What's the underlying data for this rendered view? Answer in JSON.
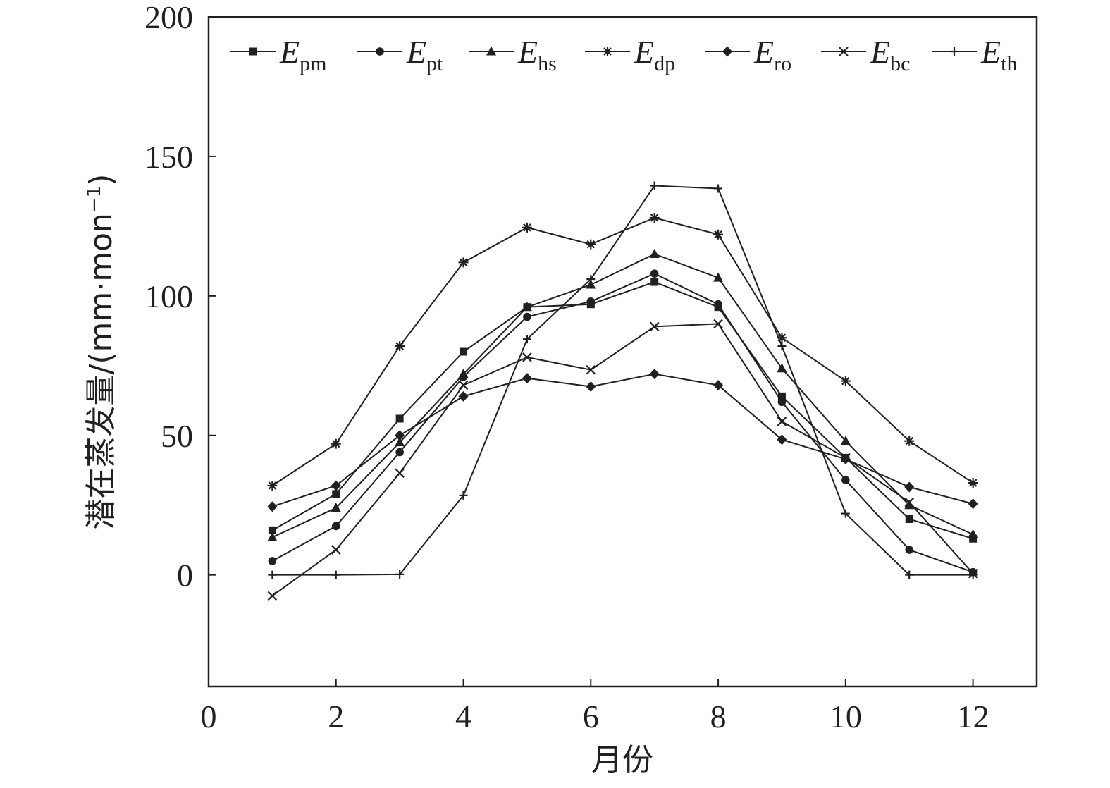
{
  "chart_data": {
    "type": "line",
    "xlabel": "月份",
    "ylabel": "潜在蒸发量/(mm·mon",
    "ylabel_sup": "−1",
    "ylabel_close": ")",
    "xlim": [
      0,
      13
    ],
    "ylim": [
      -40,
      200
    ],
    "xticks": [
      0,
      2,
      4,
      6,
      8,
      10,
      12
    ],
    "yticks": [
      0,
      50,
      100,
      150,
      200
    ],
    "grid": false,
    "legend_position": "top",
    "line_color": "#231f20",
    "x": [
      1,
      2,
      3,
      4,
      5,
      6,
      7,
      8,
      9,
      10,
      11,
      12
    ],
    "series": [
      {
        "name": "E",
        "sub": "pm",
        "marker": "square",
        "values": [
          16,
          29,
          56,
          80,
          96,
          97,
          105,
          96,
          64,
          42,
          20,
          13
        ]
      },
      {
        "name": "E",
        "sub": "pt",
        "marker": "circle",
        "values": [
          5,
          17.5,
          44,
          71,
          92.5,
          98,
          108,
          97,
          62,
          34,
          9,
          1
        ]
      },
      {
        "name": "E",
        "sub": "hs",
        "marker": "triangle",
        "values": [
          13.5,
          24,
          47.5,
          72,
          96,
          104,
          115,
          106.5,
          74,
          48,
          25,
          14.5
        ]
      },
      {
        "name": "E",
        "sub": "dp",
        "marker": "asterisk",
        "values": [
          32,
          47,
          82,
          112,
          124.5,
          118.5,
          128,
          122,
          85,
          69.5,
          48,
          33
        ]
      },
      {
        "name": "E",
        "sub": "ro",
        "marker": "diamond",
        "values": [
          24.5,
          32,
          50,
          64,
          70.5,
          67.5,
          72,
          68,
          48.5,
          41.5,
          31.5,
          25.5
        ]
      },
      {
        "name": "E",
        "sub": "bc",
        "marker": "x",
        "values": [
          -7.5,
          9,
          36.5,
          68,
          78,
          73.5,
          89,
          90,
          55,
          42,
          26,
          0.5
        ]
      },
      {
        "name": "E",
        "sub": "th",
        "marker": "plus",
        "values": [
          0,
          0,
          0.2,
          28.5,
          84.5,
          106,
          139.5,
          138.5,
          82,
          22,
          0,
          0
        ]
      }
    ]
  }
}
